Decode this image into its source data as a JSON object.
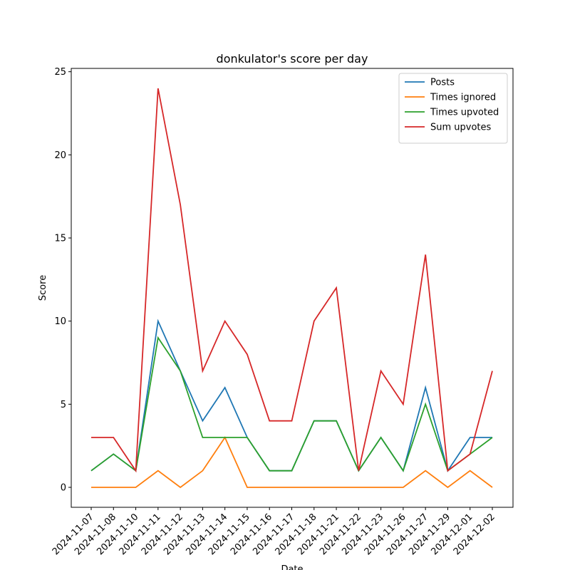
{
  "chart_data": {
    "type": "line",
    "title": "donkulator's score per day",
    "xlabel": "Date",
    "ylabel": "Score",
    "categories": [
      "2024-11-07",
      "2024-11-08",
      "2024-11-10",
      "2024-11-11",
      "2024-11-12",
      "2024-11-13",
      "2024-11-14",
      "2024-11-15",
      "2024-11-16",
      "2024-11-17",
      "2024-11-18",
      "2024-11-21",
      "2024-11-22",
      "2024-11-23",
      "2024-11-26",
      "2024-11-27",
      "2024-11-29",
      "2024-12-01",
      "2024-12-02"
    ],
    "series": [
      {
        "name": "Posts",
        "color": "#1f77b4",
        "values": [
          1,
          2,
          1,
          10,
          7,
          4,
          6,
          3,
          1,
          1,
          4,
          4,
          1,
          3,
          1,
          6,
          1,
          3,
          3
        ]
      },
      {
        "name": "Times ignored",
        "color": "#ff7f0e",
        "values": [
          0,
          0,
          0,
          1,
          0,
          1,
          3,
          0,
          0,
          0,
          0,
          0,
          0,
          0,
          0,
          1,
          0,
          1,
          0
        ]
      },
      {
        "name": "Times upvoted",
        "color": "#2ca02c",
        "values": [
          1,
          2,
          1,
          9,
          7,
          3,
          3,
          3,
          1,
          1,
          4,
          4,
          1,
          3,
          1,
          5,
          1,
          2,
          3
        ]
      },
      {
        "name": "Sum upvotes",
        "color": "#d62728",
        "values": [
          3,
          3,
          1,
          24,
          17,
          7,
          10,
          8,
          4,
          4,
          10,
          12,
          1,
          7,
          5,
          14,
          1,
          2,
          7
        ]
      }
    ],
    "ylim": [
      -1.2,
      25.2
    ],
    "yticks": [
      0,
      5,
      10,
      15,
      20,
      25
    ],
    "grid": false,
    "legend": "upper right"
  }
}
